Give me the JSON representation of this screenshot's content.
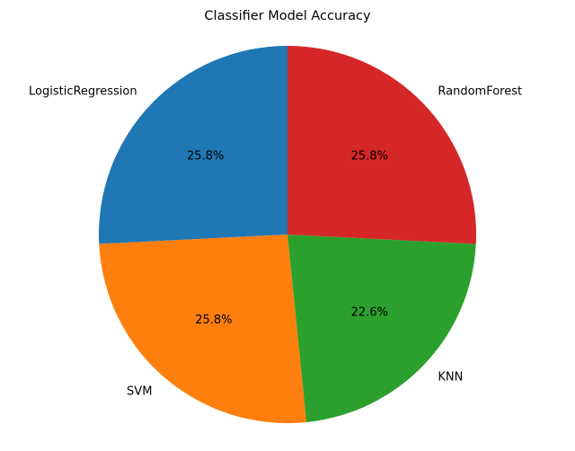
{
  "chart_data": {
    "type": "pie",
    "title": "Classifier Model Accuracy",
    "start_angle_deg": 90,
    "direction": "counterclockwise",
    "slices": [
      {
        "label": "LogisticRegression",
        "percent_label": "25.8%",
        "value": 25.8,
        "color": "#1f77b4"
      },
      {
        "label": "SVM",
        "percent_label": "25.8%",
        "value": 25.8,
        "color": "#ff7f0e"
      },
      {
        "label": "KNN",
        "percent_label": "22.6%",
        "value": 22.6,
        "color": "#2ca02c"
      },
      {
        "label": "RandomForest",
        "percent_label": "25.8%",
        "value": 25.8,
        "color": "#d62728"
      }
    ]
  }
}
